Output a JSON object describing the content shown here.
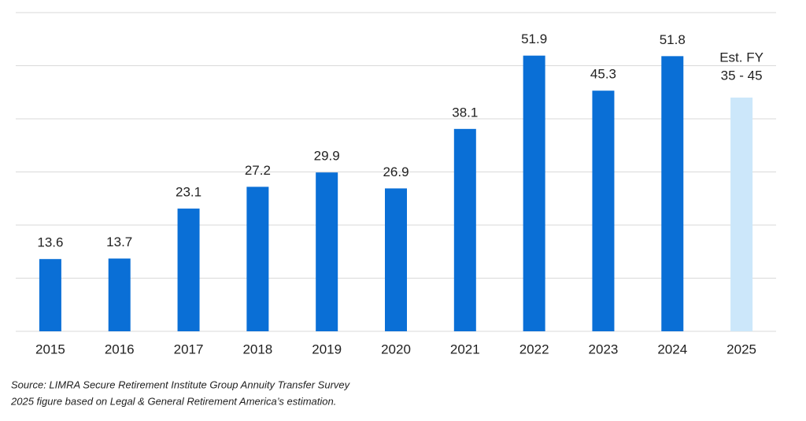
{
  "chart_data": {
    "type": "bar",
    "categories": [
      "2015",
      "2016",
      "2017",
      "2018",
      "2019",
      "2020",
      "2021",
      "2022",
      "2023",
      "2024",
      "2025"
    ],
    "values": [
      13.6,
      13.7,
      23.1,
      27.2,
      29.9,
      26.9,
      38.1,
      51.9,
      45.3,
      51.8,
      44
    ],
    "colors": [
      "#0a6fd6",
      "#0a6fd6",
      "#0a6fd6",
      "#0a6fd6",
      "#0a6fd6",
      "#0a6fd6",
      "#0a6fd6",
      "#0a6fd6",
      "#0a6fd6",
      "#0a6fd6",
      "#cce7fa"
    ],
    "estimate_label": [
      "Est. FY",
      "35 - 45"
    ],
    "ylim": [
      0,
      60
    ],
    "yticks": [
      0,
      10,
      20,
      30,
      40,
      50,
      60
    ],
    "grid": true,
    "notes": [
      "Source: LIMRA Secure Retirement Institute Group Annuity Transfer Survey",
      "2025 figure based on Legal & General Retirement America’s estimation."
    ]
  }
}
